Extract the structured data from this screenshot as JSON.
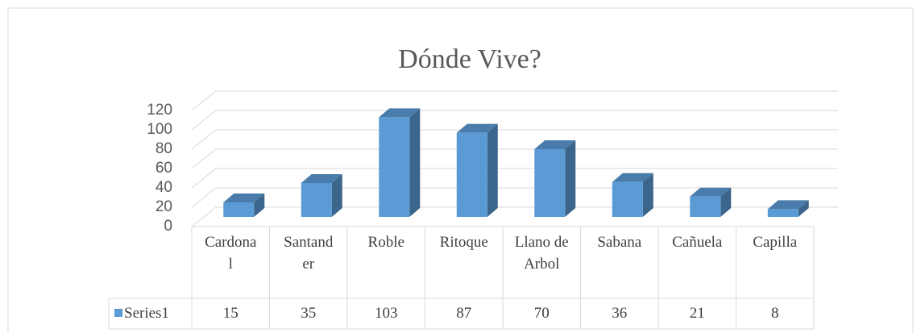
{
  "chart_data": {
    "type": "bar3d",
    "title": "Dónde Vive?",
    "categories": [
      "Cardonal",
      "Santander",
      "Roble",
      "Ritoque",
      "Llano de Arbol",
      "Sabana",
      "Cañuela",
      "Capilla"
    ],
    "series": [
      {
        "name": "Series1",
        "color": "#5b9bd5",
        "values": [
          15,
          35,
          103,
          87,
          70,
          36,
          21,
          8
        ]
      }
    ],
    "ylim": [
      0,
      120
    ],
    "yticks": [
      0,
      20,
      40,
      60,
      80,
      100,
      120
    ],
    "grid": true,
    "data_table": true
  }
}
